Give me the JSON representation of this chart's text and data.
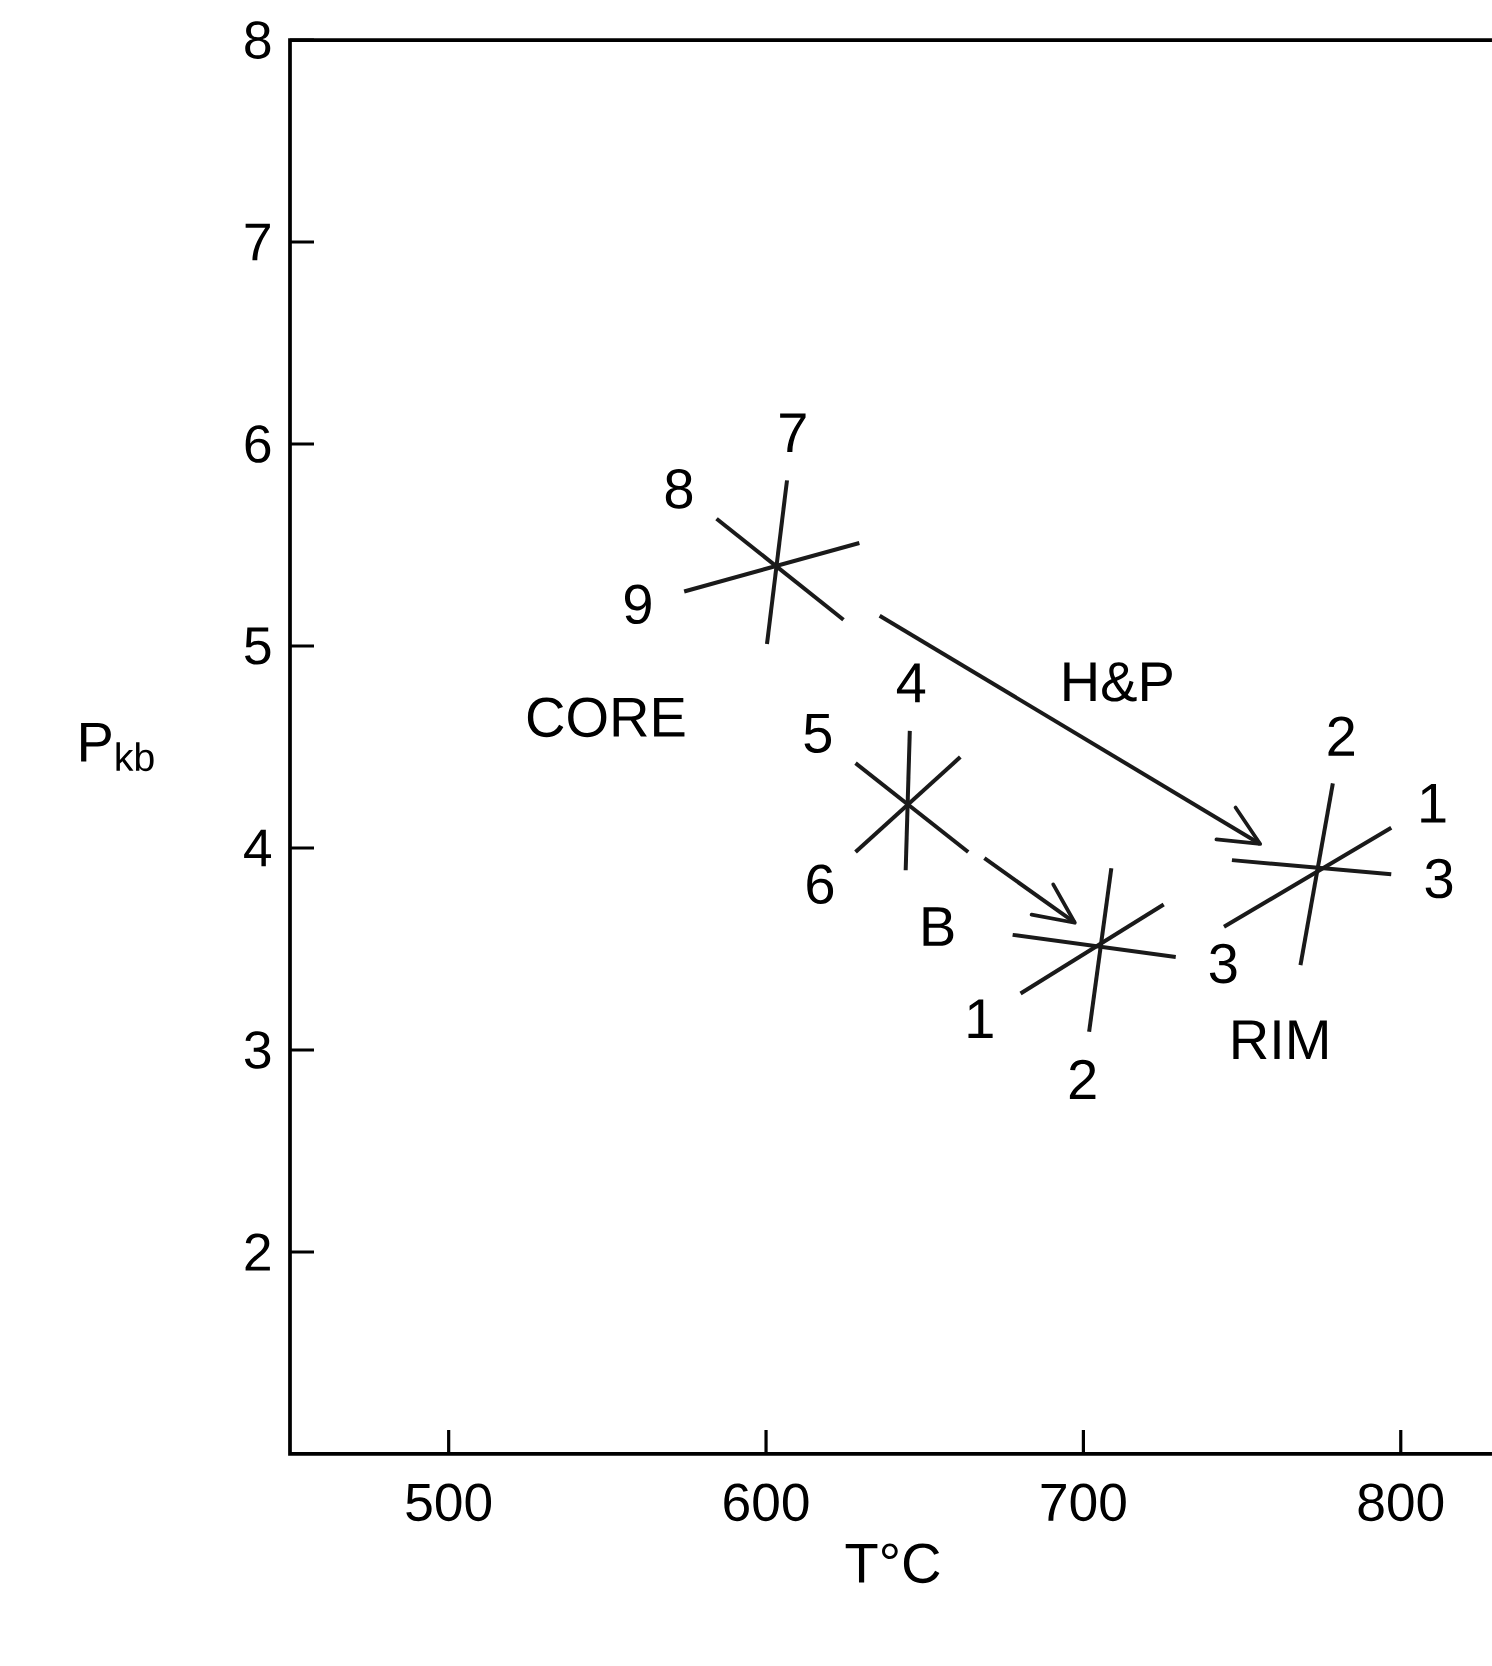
{
  "chart_data": {
    "type": "line",
    "xlabel": "T°C",
    "ylabel": "P$_{kb}$",
    "xlim": [
      450,
      830
    ],
    "ylim": [
      1,
      8
    ],
    "xticks": [
      500,
      600,
      700,
      800
    ],
    "yticks": [
      2,
      3,
      4,
      5,
      6,
      7,
      8
    ],
    "grid": false,
    "legend": false,
    "marker": "none",
    "line_style": "solid",
    "series": [
      {
        "name": "7",
        "color": "#1a1a1a",
        "x": [
          606.6,
          600.3
        ],
        "values": [
          5.82,
          5.01
        ]
      },
      {
        "name": "8",
        "color": "#1a1a1a",
        "x": [
          584.4,
          624.4
        ],
        "values": [
          5.63,
          5.13
        ]
      },
      {
        "name": "9",
        "color": "#1a1a1a",
        "x": [
          574.2,
          629.4
        ],
        "values": [
          5.27,
          5.51
        ]
      },
      {
        "name": "4",
        "color": "#1a1a1a",
        "x": [
          645.3,
          644.0
        ],
        "values": [
          4.58,
          3.89
        ]
      },
      {
        "name": "5",
        "color": "#1a1a1a",
        "x": [
          628.2,
          663.7
        ],
        "values": [
          4.42,
          3.98
        ]
      },
      {
        "name": "6",
        "color": "#1a1a1a",
        "x": [
          628.2,
          661.2
        ],
        "values": [
          3.98,
          4.45
        ]
      },
      {
        "name": "2",
        "color": "#1a1a1a",
        "x": [
          701.8,
          708.8
        ],
        "values": [
          3.09,
          3.9
        ]
      },
      {
        "name": "1",
        "color": "#1a1a1a",
        "x": [
          680.2,
          725.3
        ],
        "values": [
          3.28,
          3.72
        ]
      },
      {
        "name": "3",
        "color": "#1a1a1a",
        "x": [
          729.1,
          677.7
        ],
        "values": [
          3.46,
          3.57
        ]
      },
      {
        "name": "2",
        "color": "#1a1a1a",
        "x": [
          778.6,
          768.4
        ],
        "values": [
          4.32,
          3.42
        ]
      },
      {
        "name": "1",
        "color": "#1a1a1a",
        "x": [
          797.0,
          744.3
        ],
        "values": [
          4.1,
          3.61
        ]
      },
      {
        "name": "3",
        "color": "#1a1a1a",
        "x": [
          797.0,
          746.8
        ],
        "values": [
          3.87,
          3.94
        ]
      },
      {
        "color": "#1a1a1a",
        "x": [
          635.8,
          755.7
        ],
        "values": [
          5.15,
          4.02
        ]
      },
      {
        "color": "#1a1a1a",
        "x": [
          668.8,
          697.3
        ],
        "values": [
          3.95,
          3.63
        ]
      }
    ],
    "annotations": [
      "CORE",
      "H&P",
      "B",
      "RIM"
    ]
  }
}
